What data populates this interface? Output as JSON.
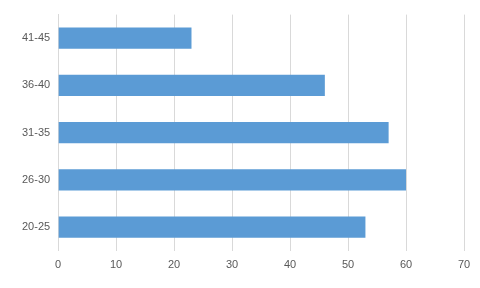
{
  "chart_data": {
    "type": "bar",
    "orientation": "horizontal",
    "categories": [
      "20-25",
      "26-30",
      "31-35",
      "36-40",
      "41-45"
    ],
    "values": [
      53,
      60,
      57,
      46,
      23
    ],
    "color": "#5b9bd5",
    "xlim": [
      0,
      70
    ],
    "xticks": [
      0,
      10,
      20,
      30,
      40,
      50,
      60,
      70
    ],
    "grid": true
  }
}
